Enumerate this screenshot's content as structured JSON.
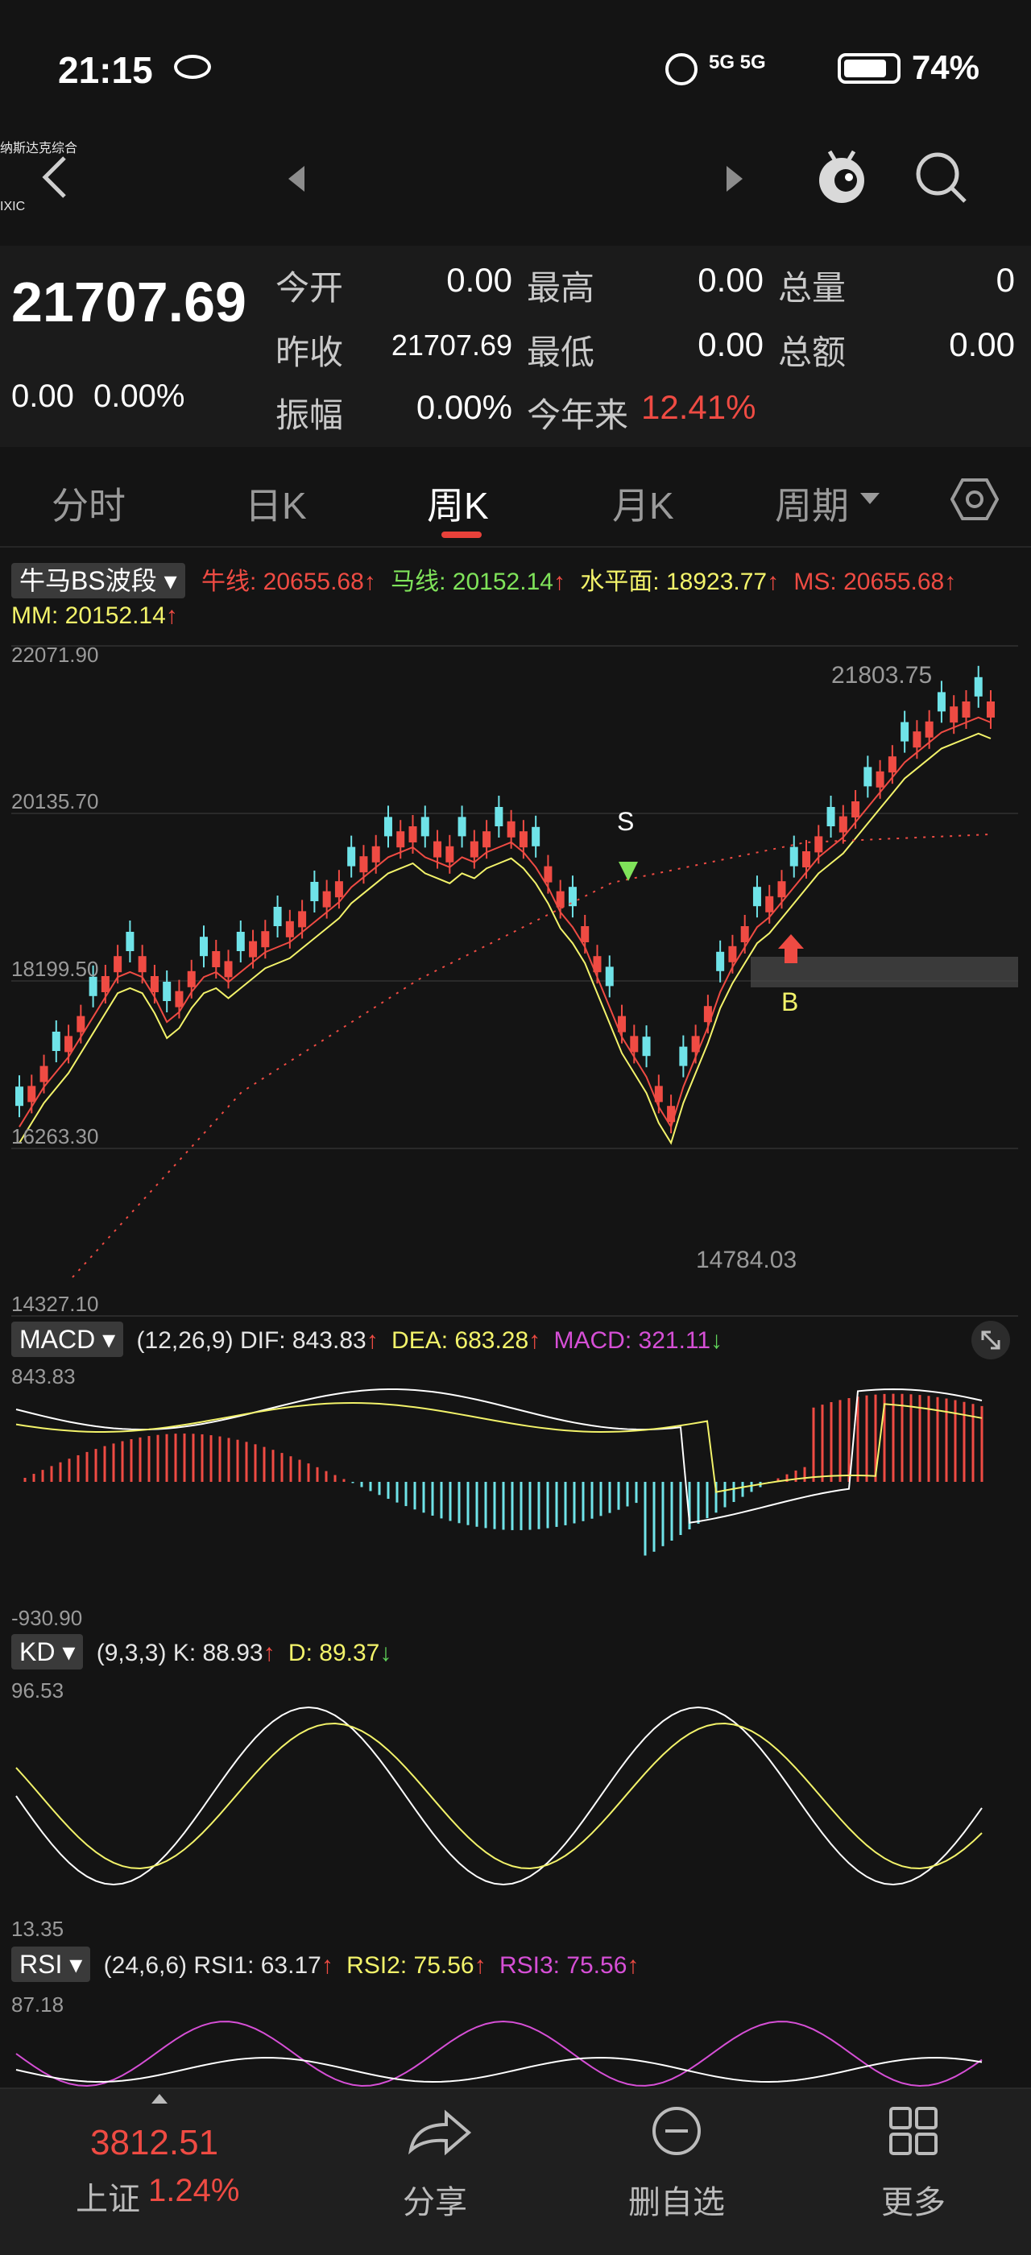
{
  "status_bar": {
    "time": "21:15",
    "network": "5G 5G",
    "battery": "74%"
  },
  "header": {
    "title": "纳斯达克综合",
    "subtitle": "IXIC"
  },
  "quote": {
    "price": "21707.69",
    "change": "0.00",
    "change_pct": "0.00%",
    "open_label": "今开",
    "open": "0.00",
    "high_label": "最高",
    "high": "0.00",
    "volume_label": "总量",
    "volume": "0",
    "prev_close_label": "昨收",
    "prev_close": "21707.69",
    "low_label": "最低",
    "low": "0.00",
    "amount_label": "总额",
    "amount": "0.00",
    "amplitude_label": "振幅",
    "amplitude": "0.00%",
    "ytd_label": "今年来",
    "ytd": "12.41%"
  },
  "tabs": [
    "分时",
    "日K",
    "周K",
    "月K",
    "周期"
  ],
  "active_tab": "周K",
  "main_indicator": {
    "selector": "牛马BS波段",
    "bull": "牛线: 20655.68",
    "horse": "马线: 20152.14",
    "level": "水平面: 18923.77",
    "ms": "MS: 20655.68",
    "mm": "MM: 20152.14",
    "arrow_up": "↑"
  },
  "chart_data": {
    "type": "candlestick",
    "y_ticks": [
      "22071.90",
      "20135.70",
      "18199.50",
      "16263.30",
      "14327.10"
    ],
    "high_label": "21803.75",
    "low_label": "14784.03",
    "sell_mark": "S",
    "buy_mark": "B",
    "colors": {
      "up": "#ef4b43",
      "down": "#6fe3e8",
      "bull": "#ef4b43",
      "horse": "#f3f36a",
      "signal_line": "#7fe35a"
    }
  },
  "macd": {
    "selector": "MACD",
    "params": "(12,26,9)",
    "dif": "DIF: 843.83",
    "dea": "DEA: 683.28",
    "macd": "MACD: 321.11",
    "top": "843.83",
    "bottom": "-930.90"
  },
  "kd": {
    "selector": "KD",
    "params": "(9,3,3)",
    "k": "K: 88.93",
    "d": "D: 89.37",
    "top": "96.53",
    "bottom": "13.35"
  },
  "rsi": {
    "selector": "RSI",
    "params": "(24,6,6)",
    "rsi1": "RSI1: 63.17",
    "rsi2": "RSI2: 75.56",
    "rsi3": "RSI3: 75.56",
    "top": "87.18"
  },
  "bottom_bar": {
    "index_value": "3812.51",
    "index_name": "上证",
    "index_pct": "1.24%",
    "share": "分享",
    "remove": "删自选",
    "more": "更多"
  }
}
